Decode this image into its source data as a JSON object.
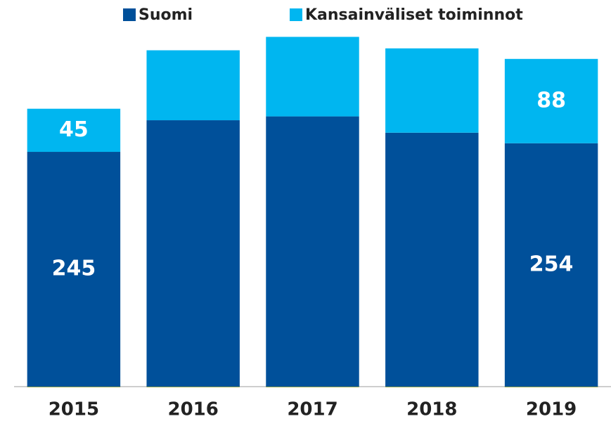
{
  "chart_data": {
    "type": "stacked_bar",
    "categories": [
      "2015",
      "2016",
      "2017",
      "2018",
      "2019"
    ],
    "series": [
      {
        "name": "Suomi",
        "color": "#00509a",
        "values": [
          245,
          278,
          282,
          265,
          254
        ],
        "value_labels": [
          "245",
          null,
          null,
          null,
          "254"
        ]
      },
      {
        "name": "Kansainväliset toiminnot",
        "color": "#00b6f0",
        "values": [
          45,
          73,
          83,
          88,
          88
        ],
        "value_labels": [
          "45",
          null,
          null,
          null,
          "88"
        ]
      }
    ],
    "ylim": [
      0,
      380
    ],
    "legend": "top"
  }
}
